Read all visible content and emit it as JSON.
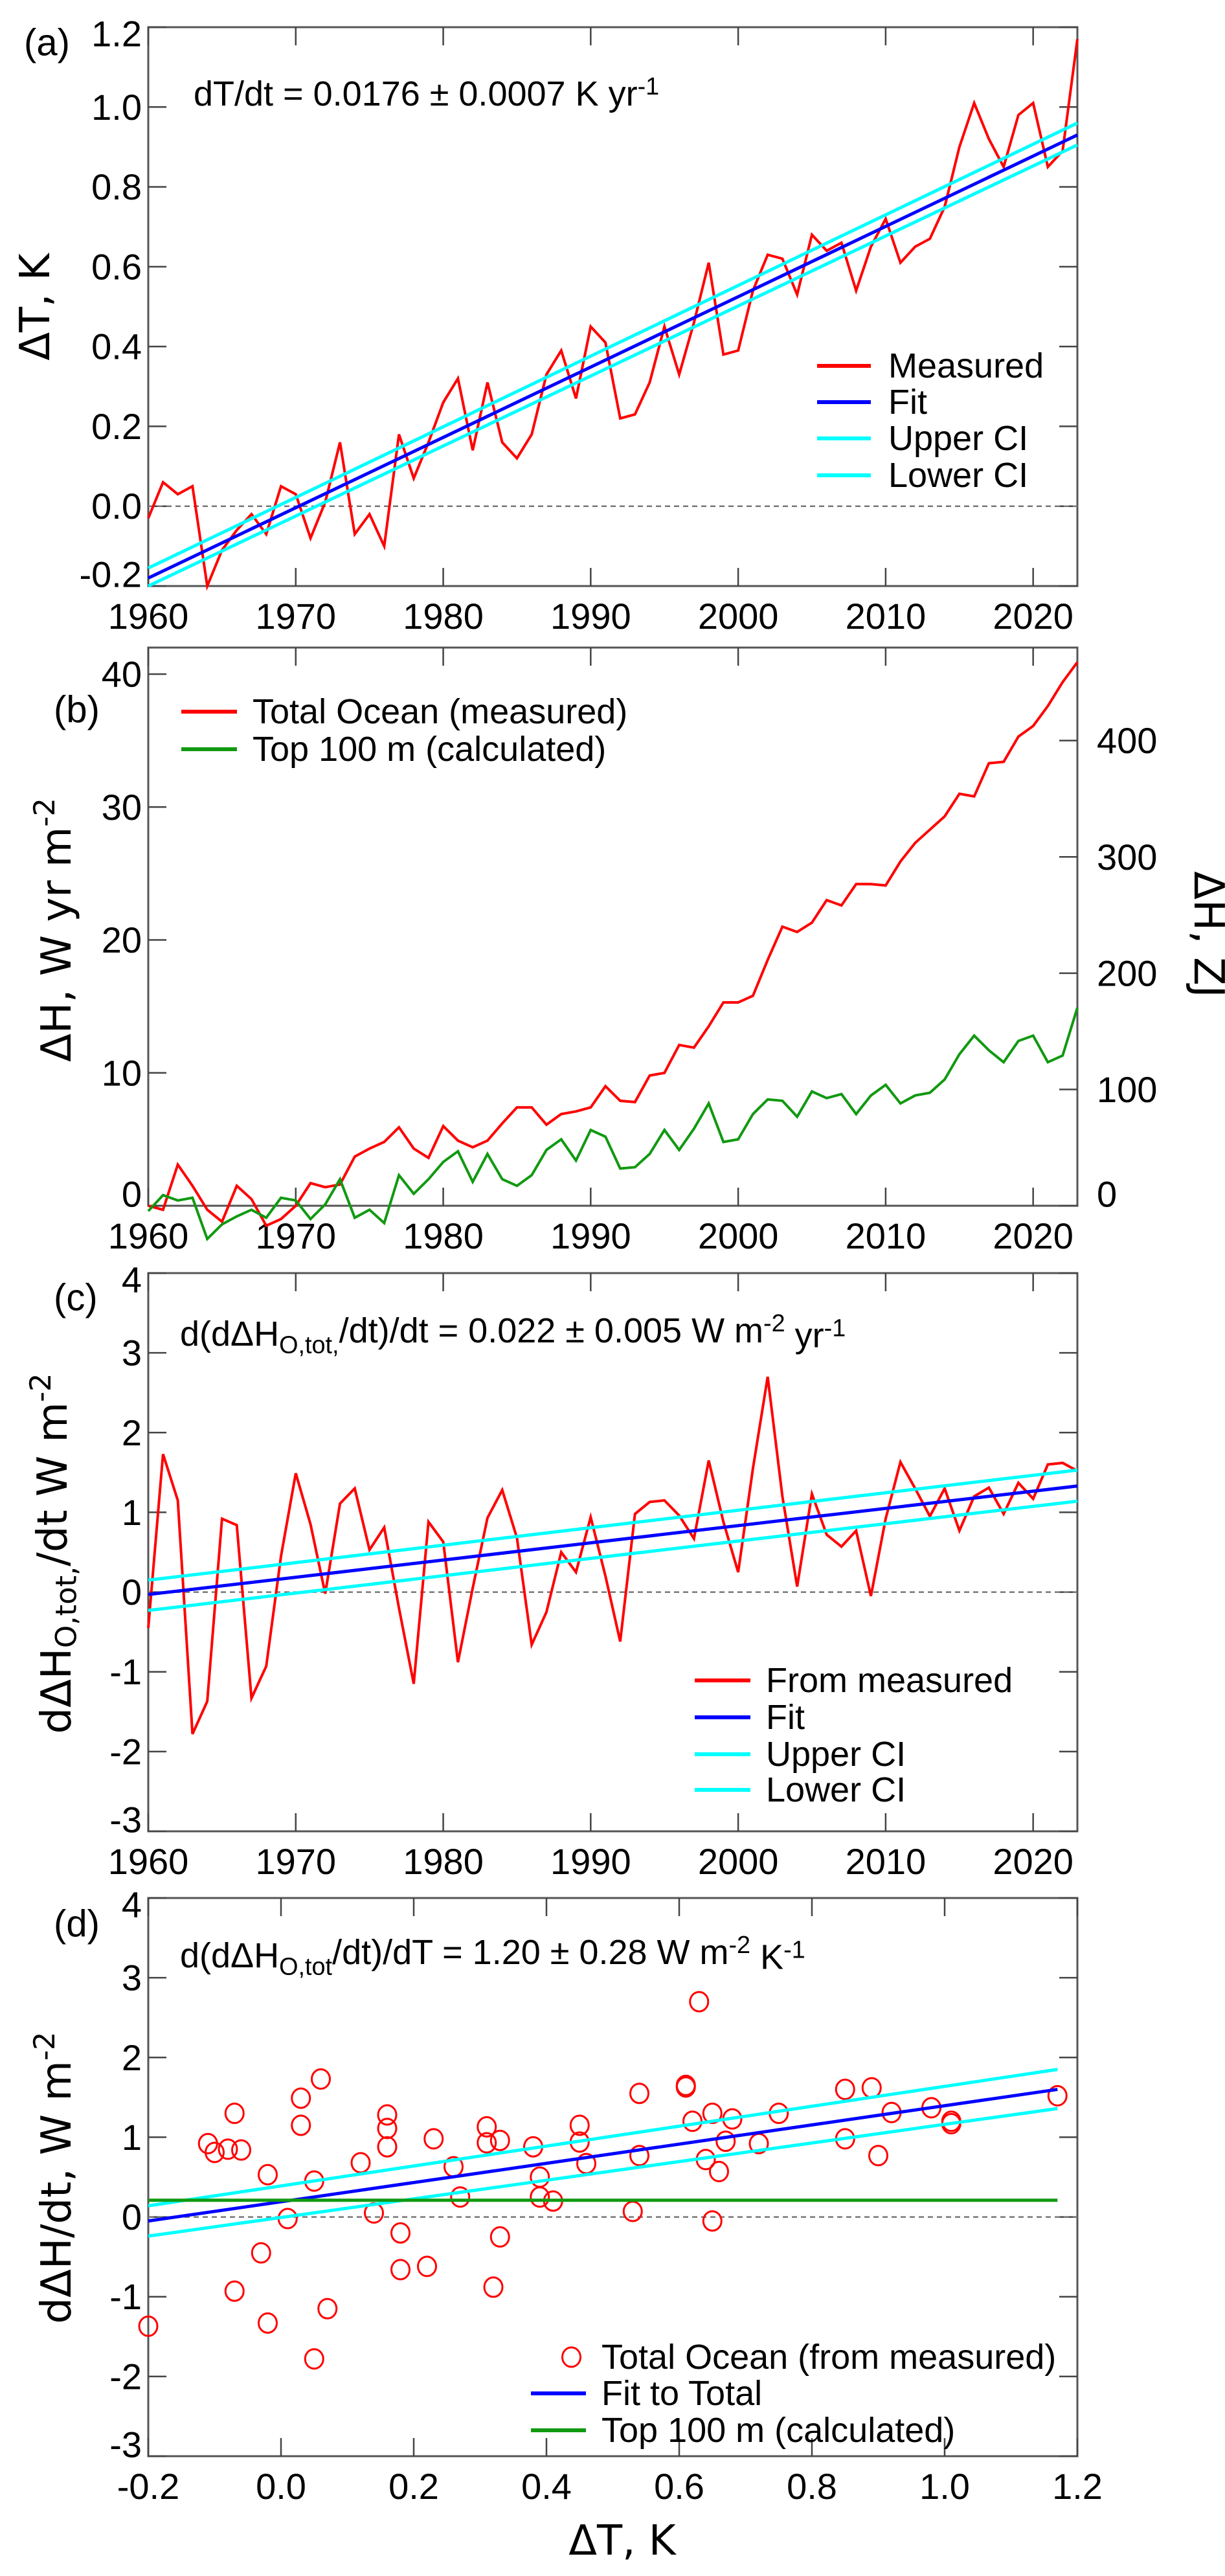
{
  "chart_data": [
    {
      "panel_label": "(a)",
      "type": "line",
      "xlim": [
        1960,
        2023
      ],
      "ylim": [
        -0.2,
        1.2
      ],
      "xticks": [
        1960,
        1970,
        1980,
        1990,
        2000,
        2010,
        2020
      ],
      "xtick_labels": [
        "1960",
        "1970",
        "1980",
        "1990",
        "2000",
        "2010",
        "2020"
      ],
      "yticks": [
        -0.2,
        0,
        0.2,
        0.4,
        0.6,
        0.8,
        1.0,
        1.2
      ],
      "ytick_labels": [
        "-0.2",
        "0.0",
        "0.2",
        "0.4",
        "0.6",
        "0.8",
        "1.0",
        "1.2"
      ],
      "ylabel": [
        {
          "t": "ΔT, K"
        }
      ],
      "annotation": [
        {
          "t": "dT/dt = 0.0176 ± 0.0007 K yr"
        },
        {
          "t": "-1",
          "sup": true
        }
      ],
      "reference_line_y": 0,
      "legend_placement": "lower-right",
      "x": [
        1960,
        1961,
        1962,
        1963,
        1964,
        1965,
        1966,
        1967,
        1968,
        1969,
        1970,
        1971,
        1972,
        1973,
        1974,
        1975,
        1976,
        1977,
        1978,
        1979,
        1980,
        1981,
        1982,
        1983,
        1984,
        1985,
        1986,
        1987,
        1988,
        1989,
        1990,
        1991,
        1992,
        1993,
        1994,
        1995,
        1996,
        1997,
        1998,
        1999,
        2000,
        2001,
        2002,
        2003,
        2004,
        2005,
        2006,
        2007,
        2008,
        2009,
        2010,
        2011,
        2012,
        2013,
        2014,
        2015,
        2016,
        2017,
        2018,
        2019,
        2020,
        2021,
        2022,
        2023
      ],
      "series": [
        {
          "name": "Measured",
          "color": "#ff0000",
          "values": [
            -0.03,
            0.06,
            0.03,
            0.05,
            -0.2,
            -0.11,
            -0.06,
            -0.02,
            -0.07,
            0.05,
            0.03,
            -0.08,
            0.01,
            0.16,
            -0.07,
            -0.02,
            -0.1,
            0.18,
            0.07,
            0.16,
            0.26,
            0.32,
            0.14,
            0.31,
            0.16,
            0.12,
            0.18,
            0.33,
            0.39,
            0.27,
            0.45,
            0.41,
            0.22,
            0.23,
            0.31,
            0.45,
            0.33,
            0.46,
            0.61,
            0.38,
            0.39,
            0.54,
            0.63,
            0.62,
            0.53,
            0.68,
            0.64,
            0.66,
            0.54,
            0.65,
            0.72,
            0.61,
            0.65,
            0.67,
            0.75,
            0.9,
            1.01,
            0.92,
            0.85,
            0.98,
            1.01,
            0.85,
            0.89,
            1.17
          ]
        },
        {
          "name": "Fit",
          "color": "#0000ff",
          "line": {
            "x": [
              1960,
              2023
            ],
            "y": [
              -0.18,
              0.93
            ]
          }
        },
        {
          "name": "Upper CI",
          "color": "#00ffff",
          "line": {
            "x": [
              1960,
              2023
            ],
            "y": [
              -0.155,
              0.96
            ]
          }
        },
        {
          "name": "Lower CI",
          "color": "#00ffff",
          "line": {
            "x": [
              1960,
              2023
            ],
            "y": [
              -0.2,
              0.905
            ]
          }
        }
      ]
    },
    {
      "panel_label": "(b)",
      "type": "line",
      "xlim": [
        1960,
        2023
      ],
      "ylim": [
        0,
        42
      ],
      "y2lim": [
        0,
        480
      ],
      "xticks": [
        1960,
        1970,
        1980,
        1990,
        2000,
        2010,
        2020
      ],
      "xtick_labels": [
        "1960",
        "1970",
        "1980",
        "1990",
        "2000",
        "2010",
        "2020"
      ],
      "yticks": [
        0,
        10,
        20,
        30,
        40
      ],
      "ytick_labels": [
        "0",
        "10",
        "20",
        "30",
        "40"
      ],
      "y2ticks": [
        0,
        100,
        200,
        300,
        400
      ],
      "y2tick_labels": [
        "0",
        "100",
        "200",
        "300",
        "400"
      ],
      "ylabel": [
        {
          "t": "ΔH, W yr m"
        },
        {
          "t": "-2",
          "sup": true
        }
      ],
      "y2label": [
        {
          "t": "ΔH, ZJ"
        }
      ],
      "legend_placement": "top-left",
      "x": [
        1960,
        1961,
        1962,
        1963,
        1964,
        1965,
        1966,
        1967,
        1968,
        1969,
        1970,
        1971,
        1972,
        1973,
        1974,
        1975,
        1976,
        1977,
        1978,
        1979,
        1980,
        1981,
        1982,
        1983,
        1984,
        1985,
        1986,
        1987,
        1988,
        1989,
        1990,
        1991,
        1992,
        1993,
        1994,
        1995,
        1996,
        1997,
        1998,
        1999,
        2000,
        2001,
        2002,
        2003,
        2004,
        2005,
        2006,
        2007,
        2008,
        2009,
        2010,
        2011,
        2012,
        2013,
        2014,
        2015,
        2016,
        2017,
        2018,
        2019,
        2020,
        2021,
        2022,
        2023
      ],
      "series": [
        {
          "name": "Total Ocean (measured)",
          "color": "#ff0000",
          "values": [
            0,
            -0.3,
            3.1,
            1.5,
            -0.3,
            -1.2,
            1.5,
            0.5,
            -1.5,
            -1.0,
            0,
            1.7,
            1.4,
            1.6,
            3.7,
            4.3,
            4.8,
            5.9,
            4.3,
            3.6,
            6.0,
            4.9,
            4.4,
            4.9,
            6.2,
            7.4,
            7.4,
            6.1,
            6.9,
            7.1,
            7.4,
            9.0,
            7.9,
            7.8,
            9.8,
            10.0,
            12.1,
            11.9,
            13.5,
            15.3,
            15.3,
            15.8,
            18.5,
            21.0,
            20.6,
            21.3,
            23.0,
            22.6,
            24.2,
            24.2,
            24.1,
            25.9,
            27.3,
            28.3,
            29.3,
            31.0,
            30.8,
            33.3,
            33.4,
            35.3,
            36.1,
            37.6,
            39.4,
            40.9
          ]
        },
        {
          "name": "Top 100 m (calculated)",
          "color": "#119911",
          "values": [
            -0.4,
            0.8,
            0.4,
            0.6,
            -2.5,
            -1.4,
            -0.8,
            -0.3,
            -0.9,
            0.6,
            0.4,
            -1.0,
            0.1,
            2.0,
            -0.9,
            -0.3,
            -1.3,
            2.3,
            0.9,
            2.0,
            3.3,
            4.1,
            1.8,
            3.9,
            2.0,
            1.5,
            2.3,
            4.2,
            5.0,
            3.4,
            5.7,
            5.2,
            2.8,
            2.9,
            3.9,
            5.7,
            4.2,
            5.8,
            7.7,
            4.8,
            5.0,
            6.9,
            8.0,
            7.9,
            6.7,
            8.6,
            8.1,
            8.4,
            6.9,
            8.3,
            9.1,
            7.7,
            8.3,
            8.5,
            9.5,
            11.4,
            12.8,
            11.7,
            10.8,
            12.4,
            12.8,
            10.8,
            11.3,
            14.9
          ]
        }
      ]
    },
    {
      "panel_label": "(c)",
      "type": "line",
      "xlim": [
        1960,
        2023
      ],
      "ylim": [
        -3,
        4
      ],
      "xticks": [
        1960,
        1970,
        1980,
        1990,
        2000,
        2010,
        2020
      ],
      "xtick_labels": [
        "1960",
        "1970",
        "1980",
        "1990",
        "2000",
        "2010",
        "2020"
      ],
      "yticks": [
        -3,
        -2,
        -1,
        0,
        1,
        2,
        3,
        4
      ],
      "ytick_labels": [
        "-3",
        "-2",
        "-1",
        "0",
        "1",
        "2",
        "3",
        "4"
      ],
      "ylabel": [
        {
          "t": "dΔH"
        },
        {
          "t": "O,tot,",
          "sub": true
        },
        {
          "t": "/dt W m"
        },
        {
          "t": "-2",
          "sup": true
        }
      ],
      "annotation": [
        {
          "t": "d(dΔH"
        },
        {
          "t": "O,tot,",
          "sub": true
        },
        {
          "t": "/dt)/dt = 0.022 ± 0.005 W m"
        },
        {
          "t": "-2",
          "sup": true
        },
        {
          "t": " yr"
        },
        {
          "t": "-1",
          "sup": true
        }
      ],
      "reference_line_y": 0,
      "legend_placement": "lower-right",
      "x": [
        1960,
        1961,
        1962,
        1963,
        1964,
        1965,
        1966,
        1967,
        1968,
        1969,
        1970,
        1971,
        1972,
        1973,
        1974,
        1975,
        1976,
        1977,
        1978,
        1979,
        1980,
        1981,
        1982,
        1983,
        1984,
        1985,
        1986,
        1987,
        1988,
        1989,
        1990,
        1991,
        1992,
        1993,
        1994,
        1995,
        1996,
        1997,
        1998,
        1999,
        2000,
        2001,
        2002,
        2003,
        2004,
        2005,
        2006,
        2007,
        2008,
        2009,
        2010,
        2011,
        2012,
        2013,
        2014,
        2015,
        2016,
        2017,
        2018,
        2019,
        2020,
        2021,
        2022,
        2023
      ],
      "series": [
        {
          "name": "From measured",
          "color": "#ff0000",
          "values": [
            -0.45,
            1.73,
            1.15,
            -1.78,
            -1.37,
            0.92,
            0.84,
            -1.33,
            -0.93,
            0.45,
            1.49,
            0.85,
            -0.02,
            1.11,
            1.3,
            0.53,
            0.81,
            -0.2,
            -1.15,
            0.88,
            0.63,
            -0.88,
            0.05,
            0.93,
            1.28,
            0.68,
            -0.66,
            -0.25,
            0.5,
            0.25,
            0.94,
            0.2,
            -0.62,
            0.98,
            1.13,
            1.15,
            0.96,
            0.67,
            1.65,
            0.88,
            0.25,
            1.55,
            2.7,
            1.2,
            0.07,
            1.23,
            0.72,
            0.57,
            0.77,
            -0.05,
            0.92,
            1.63,
            1.3,
            0.95,
            1.3,
            0.77,
            1.2,
            1.31,
            0.98,
            1.37,
            1.17,
            1.6,
            1.62,
            1.52
          ]
        },
        {
          "name": "Fit",
          "color": "#0000ff",
          "line": {
            "x": [
              1960,
              2023
            ],
            "y": [
              -0.03,
              1.33
            ]
          }
        },
        {
          "name": "Upper CI",
          "color": "#00ffff",
          "line": {
            "x": [
              1960,
              2023
            ],
            "y": [
              0.15,
              1.53
            ]
          }
        },
        {
          "name": "Lower CI",
          "color": "#00ffff",
          "line": {
            "x": [
              1960,
              2023
            ],
            "y": [
              -0.23,
              1.14
            ]
          }
        }
      ]
    },
    {
      "panel_label": "(d)",
      "type": "scatter",
      "xlim": [
        -0.2,
        1.2
      ],
      "ylim": [
        -3,
        4
      ],
      "xticks": [
        -0.2,
        0,
        0.2,
        0.4,
        0.6,
        0.8,
        1.0,
        1.2
      ],
      "xtick_labels": [
        "-0.2",
        "0.0",
        "0.2",
        "0.4",
        "0.6",
        "0.8",
        "1.0",
        "1.2"
      ],
      "yticks": [
        -3,
        -2,
        -1,
        0,
        1,
        2,
        3,
        4
      ],
      "ytick_labels": [
        "-3",
        "-2",
        "-1",
        "0",
        "1",
        "2",
        "3",
        "4"
      ],
      "xlabel": [
        {
          "t": "ΔT, K"
        }
      ],
      "ylabel": [
        {
          "t": "dΔH/dt, W m"
        },
        {
          "t": "-2",
          "sup": true
        }
      ],
      "annotation": [
        {
          "t": "d(dΔH"
        },
        {
          "t": "O,tot",
          "sub": true
        },
        {
          "t": "/dt)/dT = 1.20 ± 0.28 W m"
        },
        {
          "t": "-2",
          "sup": true
        },
        {
          "t": " K"
        },
        {
          "t": "-1",
          "sup": true
        }
      ],
      "reference_line_y": 0,
      "legend_placement": "lower-right",
      "series": [
        {
          "name": "Total Ocean (from measured)",
          "color": "#ff0000",
          "marker": "open-circle",
          "x": [
            -0.03,
            0.06,
            0.03,
            0.05,
            -0.2,
            -0.11,
            -0.06,
            -0.02,
            -0.07,
            0.05,
            0.03,
            -0.08,
            0.01,
            0.16,
            -0.07,
            -0.02,
            -0.1,
            0.18,
            0.07,
            0.16,
            0.26,
            0.32,
            0.14,
            0.31,
            0.16,
            0.12,
            0.18,
            0.33,
            0.39,
            0.27,
            0.45,
            0.41,
            0.22,
            0.23,
            0.31,
            0.45,
            0.33,
            0.46,
            0.61,
            0.38,
            0.39,
            0.54,
            0.63,
            0.62,
            0.53,
            0.68,
            0.64,
            0.66,
            0.54,
            0.65,
            0.72,
            0.61,
            0.65,
            0.67,
            0.75,
            0.9,
            1.01,
            0.92,
            0.85,
            0.98,
            1.01,
            0.85,
            0.89,
            1.17
          ],
          "y": [
            -0.45,
            1.73,
            1.15,
            -1.78,
            -1.37,
            0.92,
            0.84,
            -1.33,
            -0.93,
            0.45,
            1.49,
            0.85,
            -0.02,
            1.11,
            1.3,
            0.53,
            0.81,
            -0.2,
            -1.15,
            0.88,
            0.63,
            -0.88,
            0.05,
            0.93,
            1.28,
            0.68,
            -0.66,
            -0.25,
            0.5,
            0.25,
            0.94,
            0.2,
            -0.62,
            0.98,
            1.13,
            1.15,
            0.96,
            0.67,
            1.65,
            0.88,
            0.25,
            1.55,
            2.7,
            1.2,
            0.07,
            1.23,
            0.72,
            0.57,
            0.77,
            -0.05,
            0.92,
            1.63,
            1.3,
            0.95,
            1.3,
            0.77,
            1.2,
            1.31,
            0.98,
            1.37,
            1.17,
            1.6,
            1.62,
            1.52
          ]
        },
        {
          "name": "Fit to Total",
          "color": "#0000ff",
          "line": {
            "x": [
              -0.2,
              1.17
            ],
            "y": [
              -0.05,
              1.6
            ]
          }
        },
        {
          "color": "#00ffff",
          "line": {
            "x": [
              -0.2,
              1.17
            ],
            "y": [
              0.14,
              1.85
            ]
          }
        },
        {
          "color": "#00ffff",
          "line": {
            "x": [
              -0.2,
              1.17
            ],
            "y": [
              -0.24,
              1.36
            ]
          }
        },
        {
          "name": "Top 100 m (calculated)",
          "color": "#119911",
          "line": {
            "x": [
              -0.2,
              1.17
            ],
            "y": [
              0.21,
              0.21
            ]
          }
        }
      ]
    }
  ]
}
